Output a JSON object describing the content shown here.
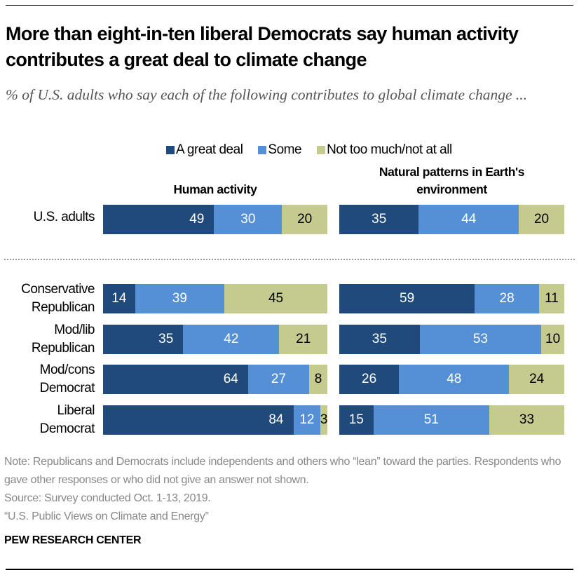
{
  "title": "More than eight-in-ten liberal Democrats say human activity contributes a great deal to climate change",
  "subtitle": "% of U.S. adults who say each of the following contributes to global climate change ...",
  "notes": [
    "Note: Republicans and Democrats include independents and others who “lean” toward the parties. Respondents who gave other responses or who did not give an answer not shown.",
    "Source: Survey conducted Oct. 1-13, 2019.",
    "“U.S. Public Views on Climate and Energy”"
  ],
  "brand": "PEW RESEARCH CENTER",
  "chart_data": {
    "type": "bar",
    "orientation": "horizontal",
    "stacked": true,
    "legend": [
      "A great deal",
      "Some",
      "Not too much/not at all"
    ],
    "legend_position": "top",
    "colors": [
      "#214a7c",
      "#5590d6",
      "#c5ca8e"
    ],
    "panels": [
      "Human activity",
      "Natural patterns in Earth's environment"
    ],
    "categories": [
      "U.S. adults",
      "Conservative Republican",
      "Mod/lib Republican",
      "Mod/cons Democrat",
      "Liberal Democrat"
    ],
    "series": [
      {
        "panel": "Human activity",
        "values": [
          [
            49,
            30,
            20
          ],
          [
            14,
            39,
            45
          ],
          [
            35,
            42,
            21
          ],
          [
            64,
            27,
            8
          ],
          [
            84,
            12,
            3
          ]
        ]
      },
      {
        "panel": "Natural patterns in Earth's environment",
        "values": [
          [
            35,
            44,
            20
          ],
          [
            59,
            28,
            11
          ],
          [
            35,
            53,
            10
          ],
          [
            26,
            48,
            24
          ],
          [
            15,
            51,
            33
          ]
        ]
      }
    ]
  }
}
